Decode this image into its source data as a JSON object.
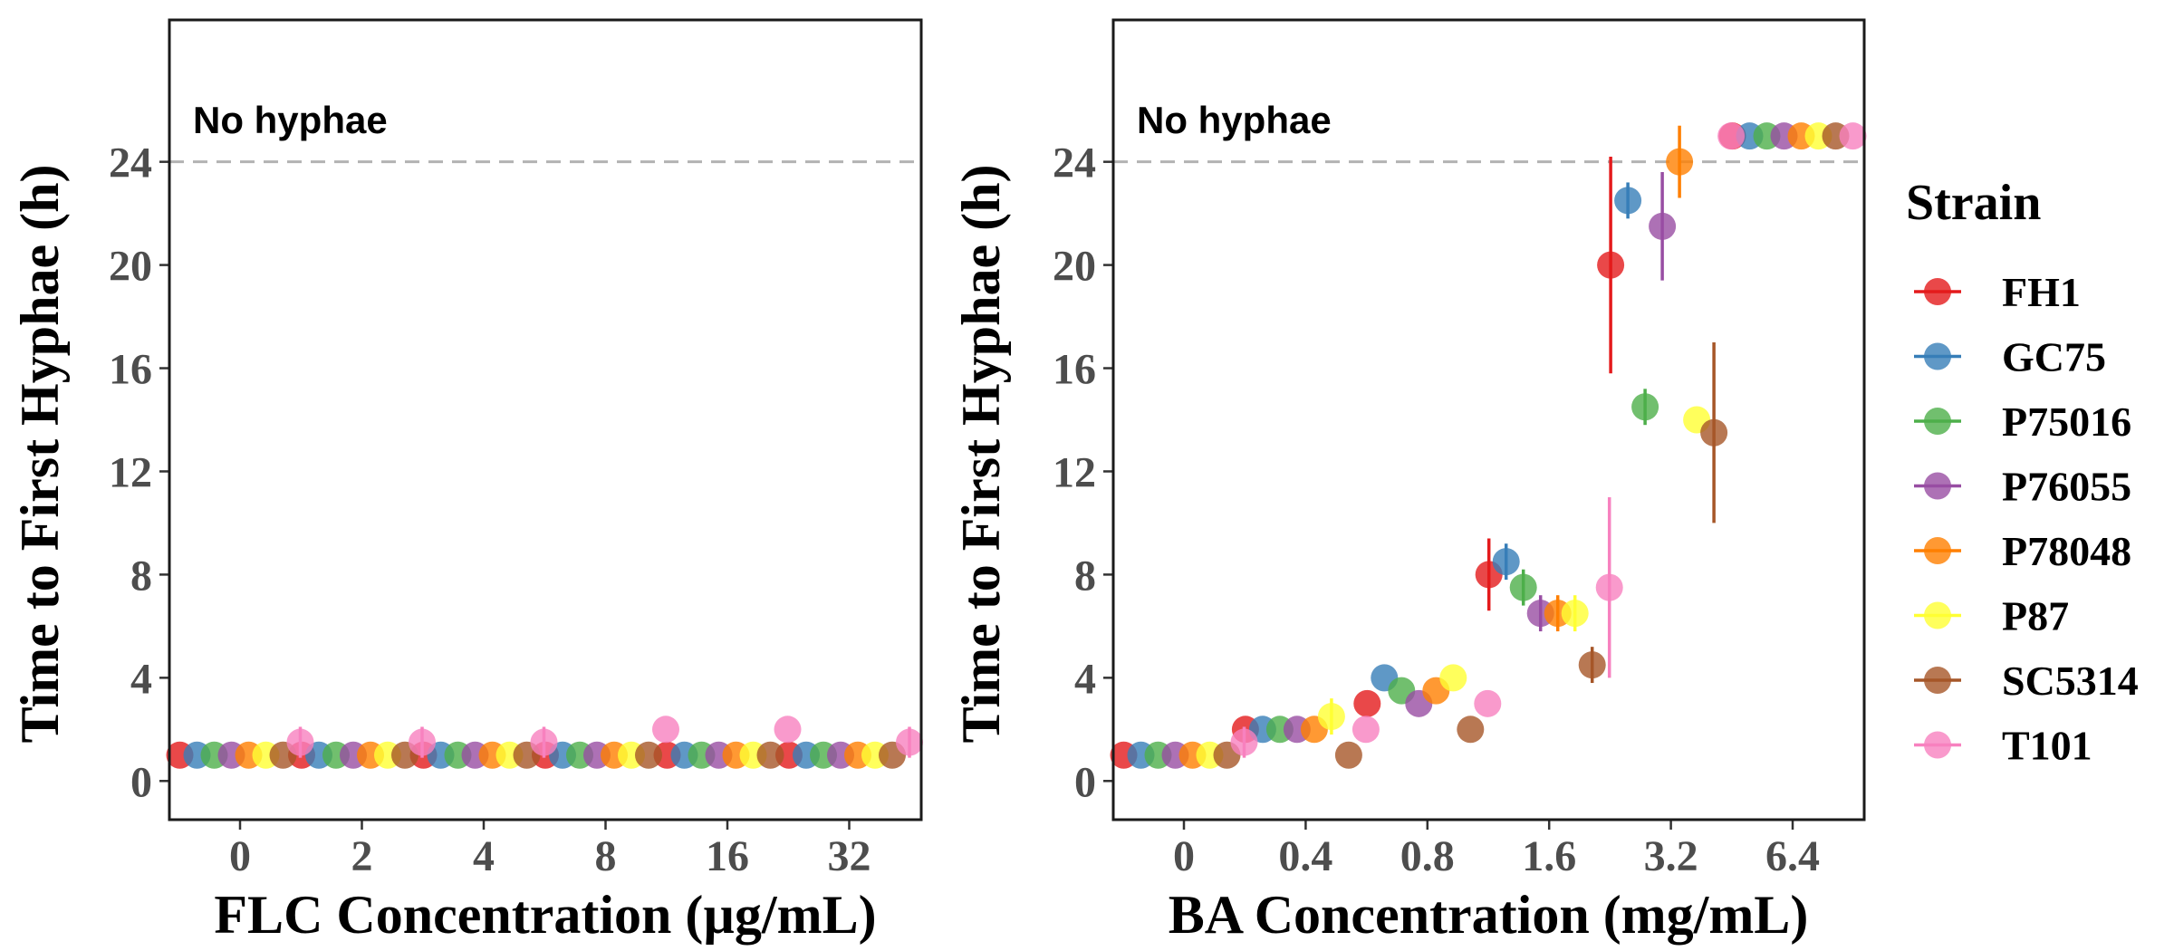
{
  "chart_data": [
    {
      "type": "scatter",
      "xlabel": "FLC Concentration (µg/mL)",
      "ylabel": "Time to First Hyphae (h)",
      "categories": [
        "0",
        "2",
        "4",
        "8",
        "16",
        "32"
      ],
      "yticks": [
        0,
        4,
        8,
        12,
        16,
        20,
        24
      ],
      "ylim": [
        -1.5,
        29.5
      ],
      "reference_line": {
        "y": 24,
        "style": "dashed"
      },
      "annotation": "No hyphae",
      "grid": false,
      "series": [
        {
          "name": "FH1",
          "values": [
            1,
            1,
            1,
            1,
            1,
            1
          ],
          "err": [
            0,
            0,
            0,
            0,
            0,
            0
          ]
        },
        {
          "name": "GC75",
          "values": [
            1,
            1,
            1,
            1,
            1,
            1
          ],
          "err": [
            0,
            0,
            0,
            0,
            0,
            0
          ]
        },
        {
          "name": "P75016",
          "values": [
            1,
            1,
            1,
            1,
            1,
            1
          ],
          "err": [
            0,
            0,
            0,
            0,
            0,
            0
          ]
        },
        {
          "name": "P76055",
          "values": [
            1,
            1,
            1,
            1,
            1,
            1
          ],
          "err": [
            0,
            0,
            0,
            0,
            0,
            0
          ]
        },
        {
          "name": "P78048",
          "values": [
            1,
            1,
            1,
            1,
            1,
            1
          ],
          "err": [
            0,
            0,
            0,
            0,
            0,
            0
          ]
        },
        {
          "name": "P87",
          "values": [
            1,
            1,
            1,
            1,
            1,
            1
          ],
          "err": [
            0,
            0,
            0,
            0,
            0,
            0
          ]
        },
        {
          "name": "SC5314",
          "values": [
            1,
            1,
            1,
            1,
            1,
            1
          ],
          "err": [
            0,
            0,
            0,
            0,
            0,
            0
          ]
        },
        {
          "name": "T101",
          "values": [
            1.5,
            1.5,
            1.5,
            2,
            2,
            1.5
          ],
          "err": [
            0.6,
            0.6,
            0.6,
            0,
            0,
            0.6
          ]
        }
      ]
    },
    {
      "type": "scatter",
      "xlabel": "BA Concentration (mg/mL)",
      "ylabel": "Time to First Hyphae (h)",
      "categories": [
        "0",
        "0.4",
        "0.8",
        "1.6",
        "3.2",
        "6.4"
      ],
      "yticks": [
        0,
        4,
        8,
        12,
        16,
        20,
        24
      ],
      "ylim": [
        -1.5,
        29.5
      ],
      "reference_line": {
        "y": 24,
        "style": "dashed"
      },
      "annotation": "No hyphae",
      "grid": false,
      "series": [
        {
          "name": "FH1",
          "values": [
            1,
            2,
            3,
            8,
            20,
            25
          ],
          "err": [
            0,
            0,
            0,
            1.4,
            4.2,
            0
          ]
        },
        {
          "name": "GC75",
          "values": [
            1,
            2,
            4,
            8.5,
            22.5,
            25
          ],
          "err": [
            0,
            0,
            0,
            0.7,
            0.7,
            0
          ]
        },
        {
          "name": "P75016",
          "values": [
            1,
            2,
            3.5,
            7.5,
            14.5,
            25
          ],
          "err": [
            0,
            0,
            0,
            0.7,
            0.7,
            0
          ]
        },
        {
          "name": "P76055",
          "values": [
            1,
            2,
            3,
            6.5,
            21.5,
            25
          ],
          "err": [
            0,
            0,
            0,
            0.7,
            2.1,
            0
          ]
        },
        {
          "name": "P78048",
          "values": [
            1,
            2,
            3.5,
            6.5,
            24,
            25
          ],
          "err": [
            0,
            0,
            0,
            0.7,
            1.4,
            0
          ]
        },
        {
          "name": "P87",
          "values": [
            1,
            2.5,
            4,
            6.5,
            14,
            25
          ],
          "err": [
            0,
            0.7,
            0,
            0.7,
            0,
            0
          ]
        },
        {
          "name": "SC5314",
          "values": [
            1,
            1,
            2,
            4.5,
            13.5,
            25
          ],
          "err": [
            0,
            0,
            0,
            0.7,
            3.5,
            0
          ]
        },
        {
          "name": "T101",
          "values": [
            1.5,
            2,
            3,
            7.5,
            25,
            25
          ],
          "err": [
            0.6,
            0,
            0,
            3.5,
            0,
            0
          ]
        }
      ]
    }
  ],
  "legend": {
    "title": "Strain",
    "position": "right",
    "entries": [
      "FH1",
      "GC75",
      "P75016",
      "P76055",
      "P78048",
      "P87",
      "SC5314",
      "T101"
    ]
  },
  "colors": {
    "FH1": "#E41A1C",
    "GC75": "#377EB8",
    "P75016": "#4DAF4A",
    "P76055": "#984EA3",
    "P78048": "#FF7F00",
    "P87": "#FFFF33",
    "SC5314": "#A65628",
    "T101": "#F781BF",
    "reference_line": "#b3b3b3",
    "panel_border": "#1a1a1a",
    "tick_text": "#4d4d4d"
  }
}
